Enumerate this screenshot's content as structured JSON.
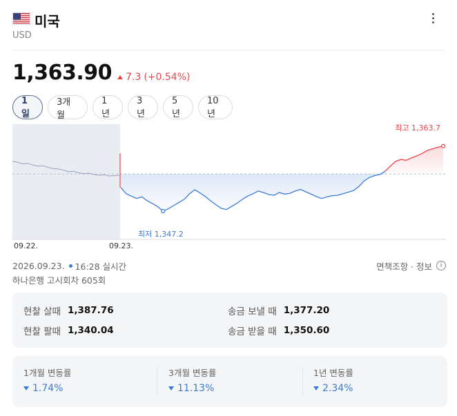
{
  "header": {
    "title": "미국",
    "currency": "USD",
    "flag_icon": "us-flag-icon",
    "more_icon": "more-vertical-icon"
  },
  "quote": {
    "price": "1,363.90",
    "change": "7.3",
    "change_pct": "(+0.54%)",
    "direction": "up"
  },
  "tabs": [
    {
      "label": "1일",
      "active": true
    },
    {
      "label": "3개월",
      "active": false
    },
    {
      "label": "1년",
      "active": false
    },
    {
      "label": "3년",
      "active": false
    },
    {
      "label": "5년",
      "active": false
    },
    {
      "label": "10년",
      "active": false
    }
  ],
  "chart_data": {
    "type": "line",
    "x_labels": [
      "09.22.",
      "09.23."
    ],
    "previous_close": 1356.6,
    "ylim": [
      1343,
      1367.5
    ],
    "annotations": {
      "high": {
        "label": "최고",
        "value": "1,363.7"
      },
      "low": {
        "label": "최저",
        "value": "1,347.2"
      }
    },
    "prev_day_series": [
      1359.8,
      1359.6,
      1359.2,
      1359.3,
      1358.9,
      1358.6,
      1358.7,
      1358.3,
      1358.0,
      1357.9,
      1357.6,
      1357.2,
      1357.3,
      1356.9,
      1356.7,
      1356.8,
      1356.5,
      1356.3,
      1356.4,
      1356.1,
      1356.2,
      1356.3
    ],
    "today_series": [
      1353.2,
      1351.6,
      1351.0,
      1350.4,
      1350.8,
      1349.8,
      1349.1,
      1348.3,
      1347.2,
      1347.8,
      1348.6,
      1349.4,
      1350.2,
      1351.6,
      1352.6,
      1351.8,
      1350.9,
      1349.8,
      1348.8,
      1347.9,
      1347.6,
      1348.4,
      1349.2,
      1350.2,
      1351.0,
      1351.6,
      1352.3,
      1351.9,
      1351.4,
      1351.2,
      1351.9,
      1351.5,
      1351.7,
      1352.3,
      1352.7,
      1352.1,
      1351.5,
      1350.9,
      1350.4,
      1350.8,
      1351.1,
      1351.2,
      1351.6,
      1352.0,
      1352.4,
      1353.4,
      1354.8,
      1355.7,
      1356.2,
      1356.5,
      1357.3,
      1358.6,
      1359.8,
      1360.3,
      1360.1,
      1360.7,
      1361.2,
      1361.8,
      1362.6,
      1363.0,
      1363.4,
      1363.7
    ]
  },
  "meta": {
    "datetime": "2026.09.23.",
    "time": "16:28 실시간",
    "source": "하나은행 고시회차 605회",
    "disclaimer": "면책조항 · 정보"
  },
  "rates": {
    "cash_buy_label": "현찰 살때",
    "cash_buy": "1,387.76",
    "cash_sell_label": "현찰 팔때",
    "cash_sell": "1,340.04",
    "send_label": "송금 보낼 때",
    "send": "1,377.20",
    "receive_label": "송금 받을 때",
    "receive": "1,350.60"
  },
  "changes": [
    {
      "label": "1개월 변동률",
      "value": "1.74%"
    },
    {
      "label": "3개월 변동률",
      "value": "11.13%"
    },
    {
      "label": "1년 변동률",
      "value": "2.34%"
    }
  ],
  "colors": {
    "up": "#e8454a",
    "down": "#3a7bd5",
    "prev": "#9aa7bd"
  }
}
